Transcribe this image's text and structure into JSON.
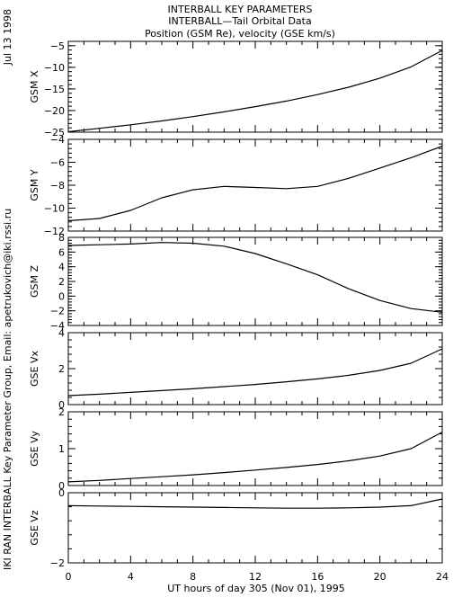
{
  "header": {
    "date": "Jul 13 1998",
    "side_text": "IKI RAN INTERBALL Key Parameter Group, Email: apetrukovich@iki.rssi.ru",
    "title_lines": [
      "INTERBALL KEY PARAMETERS",
      "INTERBALL—Tail Orbital Data",
      "Position (GSM Re), velocity (GSE km/s)"
    ]
  },
  "chart_data": {
    "type": "line",
    "x_axis": {
      "label": "UT hours of day 305 (Nov 01), 1995",
      "range": [
        0,
        24
      ],
      "ticks": [
        0,
        4,
        8,
        12,
        16,
        20,
        24
      ],
      "tick_labels": [
        "0",
        "4",
        "8",
        "12",
        "16",
        "20",
        "24"
      ]
    },
    "panels": [
      {
        "ylabel": "GSM X",
        "ylim": [
          -25,
          -4
        ],
        "tick_values": [
          -25,
          -20,
          -15,
          -10,
          -5
        ],
        "tick_labels": [
          "−25",
          "−20",
          "−15",
          "−10",
          "−5"
        ],
        "x": [
          0,
          2,
          4,
          6,
          8,
          10,
          12,
          14,
          16,
          18,
          20,
          22,
          24
        ],
        "y": [
          -24.9,
          -24.1,
          -23.3,
          -22.4,
          -21.4,
          -20.3,
          -19.1,
          -17.8,
          -16.3,
          -14.6,
          -12.5,
          -9.9,
          -6.1
        ]
      },
      {
        "ylabel": "GSM Y",
        "ylim": [
          -12,
          -4
        ],
        "tick_values": [
          -12,
          -10,
          -8,
          -6,
          -4
        ],
        "tick_labels": [
          "−12",
          "−10",
          "−8",
          "−6",
          "−4"
        ],
        "x": [
          0,
          2,
          4,
          6,
          8,
          10,
          12,
          14,
          16,
          18,
          20,
          22,
          24
        ],
        "y": [
          -11.1,
          -10.9,
          -10.2,
          -9.1,
          -8.4,
          -8.1,
          -8.2,
          -8.3,
          -8.1,
          -7.4,
          -6.5,
          -5.6,
          -4.6
        ]
      },
      {
        "ylabel": "GSM Z",
        "ylim": [
          -4,
          8
        ],
        "tick_values": [
          -4,
          -2,
          0,
          2,
          4,
          6,
          8
        ],
        "tick_labels": [
          "−4",
          "−2",
          "0",
          "2",
          "4",
          "6",
          "8"
        ],
        "x": [
          0,
          2,
          4,
          6,
          8,
          10,
          12,
          14,
          16,
          18,
          20,
          22,
          24
        ],
        "y": [
          6.9,
          7.0,
          7.1,
          7.3,
          7.2,
          6.8,
          5.8,
          4.4,
          2.9,
          1.0,
          -0.6,
          -1.7,
          -2.2
        ]
      },
      {
        "ylabel": "GSE Vx",
        "ylim": [
          0,
          4
        ],
        "tick_values": [
          0,
          2,
          4
        ],
        "tick_labels": [
          "0",
          "2",
          "4"
        ],
        "x": [
          0,
          2,
          4,
          6,
          8,
          10,
          12,
          14,
          16,
          18,
          20,
          22,
          24
        ],
        "y": [
          0.5,
          0.58,
          0.68,
          0.78,
          0.88,
          1.0,
          1.12,
          1.27,
          1.43,
          1.63,
          1.9,
          2.3,
          3.1
        ]
      },
      {
        "ylabel": "GSE Vy",
        "ylim": [
          0,
          2
        ],
        "tick_values": [
          0,
          1,
          2
        ],
        "tick_labels": [
          "0",
          "1",
          "2"
        ],
        "x": [
          0,
          2,
          4,
          6,
          8,
          10,
          12,
          14,
          16,
          18,
          20,
          22,
          24
        ],
        "y": [
          0.1,
          0.14,
          0.19,
          0.24,
          0.29,
          0.35,
          0.42,
          0.49,
          0.57,
          0.67,
          0.8,
          1.0,
          1.45
        ]
      },
      {
        "ylabel": "GSE Vz",
        "ylim": [
          -2,
          0
        ],
        "tick_values": [
          -2,
          0
        ],
        "tick_labels": [
          "−2",
          "0"
        ],
        "x": [
          0,
          2,
          4,
          6,
          8,
          10,
          12,
          14,
          16,
          18,
          20,
          22,
          24
        ],
        "y": [
          -0.37,
          -0.38,
          -0.39,
          -0.4,
          -0.41,
          -0.42,
          -0.43,
          -0.44,
          -0.44,
          -0.43,
          -0.41,
          -0.37,
          -0.18
        ]
      }
    ]
  }
}
